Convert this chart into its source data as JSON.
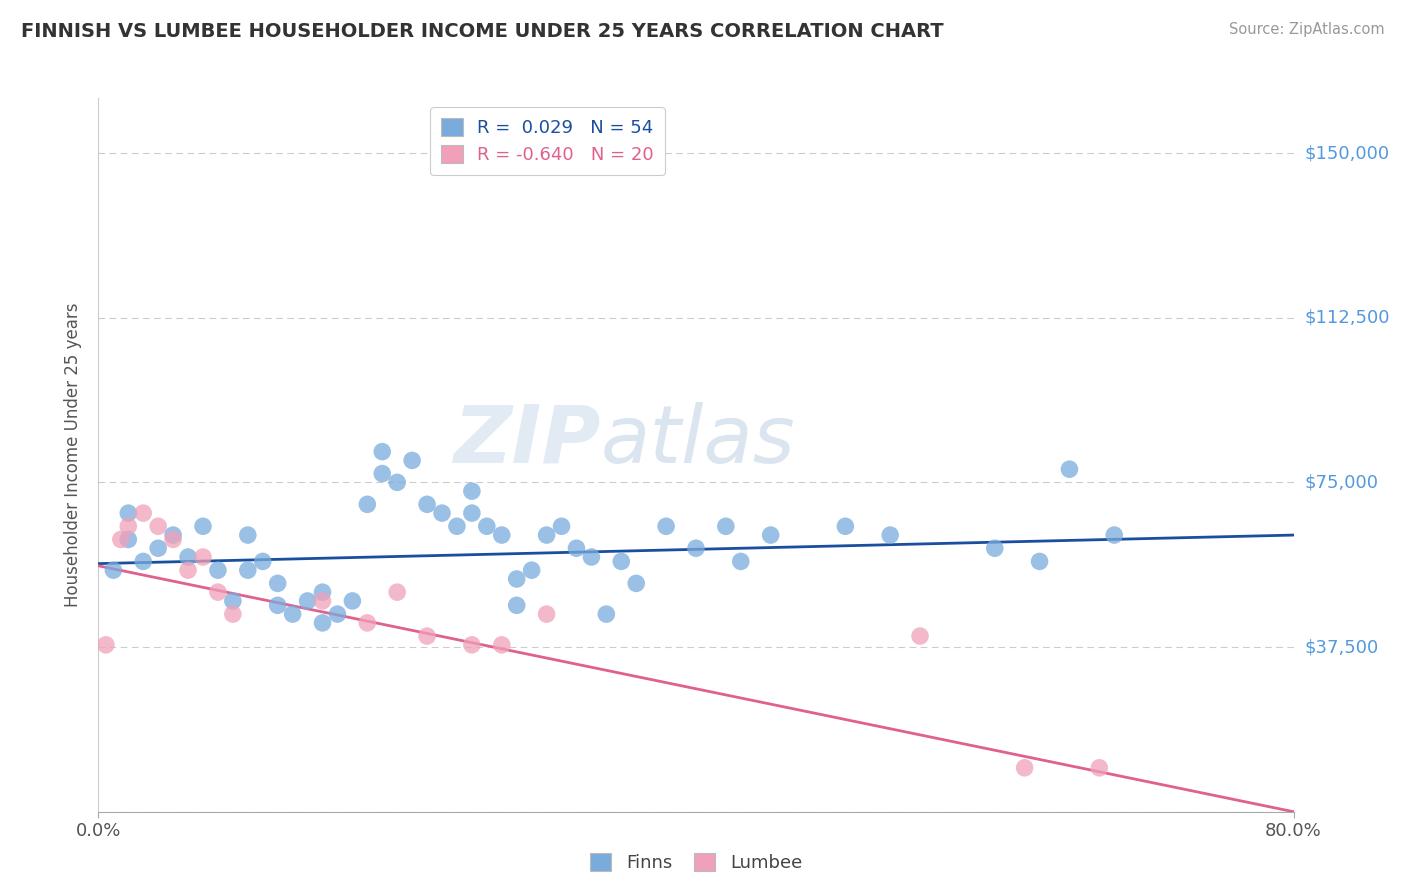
{
  "title": "FINNISH VS LUMBEE HOUSEHOLDER INCOME UNDER 25 YEARS CORRELATION CHART",
  "source": "Source: ZipAtlas.com",
  "ylabel": "Householder Income Under 25 years",
  "yticks": [
    0,
    37500,
    75000,
    112500,
    150000
  ],
  "ytick_labels": [
    "",
    "$37,500",
    "$75,000",
    "$112,500",
    "$150,000"
  ],
  "xlim": [
    0.0,
    0.8
  ],
  "ylim": [
    0,
    162500
  ],
  "legend_finns_r": "0.029",
  "legend_finns_n": "54",
  "legend_lumbee_r": "-0.640",
  "legend_lumbee_n": "20",
  "watermark_zip": "ZIP",
  "watermark_atlas": "atlas",
  "finns_color": "#7aabdd",
  "lumbee_color": "#f0a0b8",
  "finns_line_color": "#1a4fa0",
  "lumbee_line_color": "#e06090",
  "finns_x": [
    0.01,
    0.02,
    0.02,
    0.03,
    0.04,
    0.05,
    0.06,
    0.07,
    0.08,
    0.09,
    0.1,
    0.1,
    0.11,
    0.12,
    0.12,
    0.13,
    0.14,
    0.15,
    0.15,
    0.16,
    0.17,
    0.18,
    0.19,
    0.19,
    0.2,
    0.21,
    0.22,
    0.23,
    0.24,
    0.25,
    0.25,
    0.26,
    0.27,
    0.28,
    0.28,
    0.29,
    0.3,
    0.31,
    0.32,
    0.33,
    0.34,
    0.35,
    0.36,
    0.38,
    0.4,
    0.42,
    0.43,
    0.45,
    0.5,
    0.53,
    0.6,
    0.63,
    0.65,
    0.68
  ],
  "finns_y": [
    55000,
    62000,
    68000,
    57000,
    60000,
    63000,
    58000,
    65000,
    55000,
    48000,
    55000,
    63000,
    57000,
    47000,
    52000,
    45000,
    48000,
    43000,
    50000,
    45000,
    48000,
    70000,
    77000,
    82000,
    75000,
    80000,
    70000,
    68000,
    65000,
    68000,
    73000,
    65000,
    63000,
    47000,
    53000,
    55000,
    63000,
    65000,
    60000,
    58000,
    45000,
    57000,
    52000,
    65000,
    60000,
    65000,
    57000,
    63000,
    65000,
    63000,
    60000,
    57000,
    78000,
    63000
  ],
  "lumbee_x": [
    0.005,
    0.015,
    0.02,
    0.03,
    0.04,
    0.05,
    0.06,
    0.07,
    0.08,
    0.09,
    0.15,
    0.18,
    0.2,
    0.22,
    0.25,
    0.27,
    0.3,
    0.55,
    0.62,
    0.67
  ],
  "lumbee_y": [
    38000,
    62000,
    65000,
    68000,
    65000,
    62000,
    55000,
    58000,
    50000,
    45000,
    48000,
    43000,
    50000,
    40000,
    38000,
    38000,
    45000,
    40000,
    10000,
    10000
  ],
  "finns_trend_x": [
    0.0,
    0.8
  ],
  "finns_trend_y": [
    56500,
    63000
  ],
  "lumbee_trend_x": [
    0.0,
    0.8
  ],
  "lumbee_trend_y": [
    56000,
    0
  ]
}
